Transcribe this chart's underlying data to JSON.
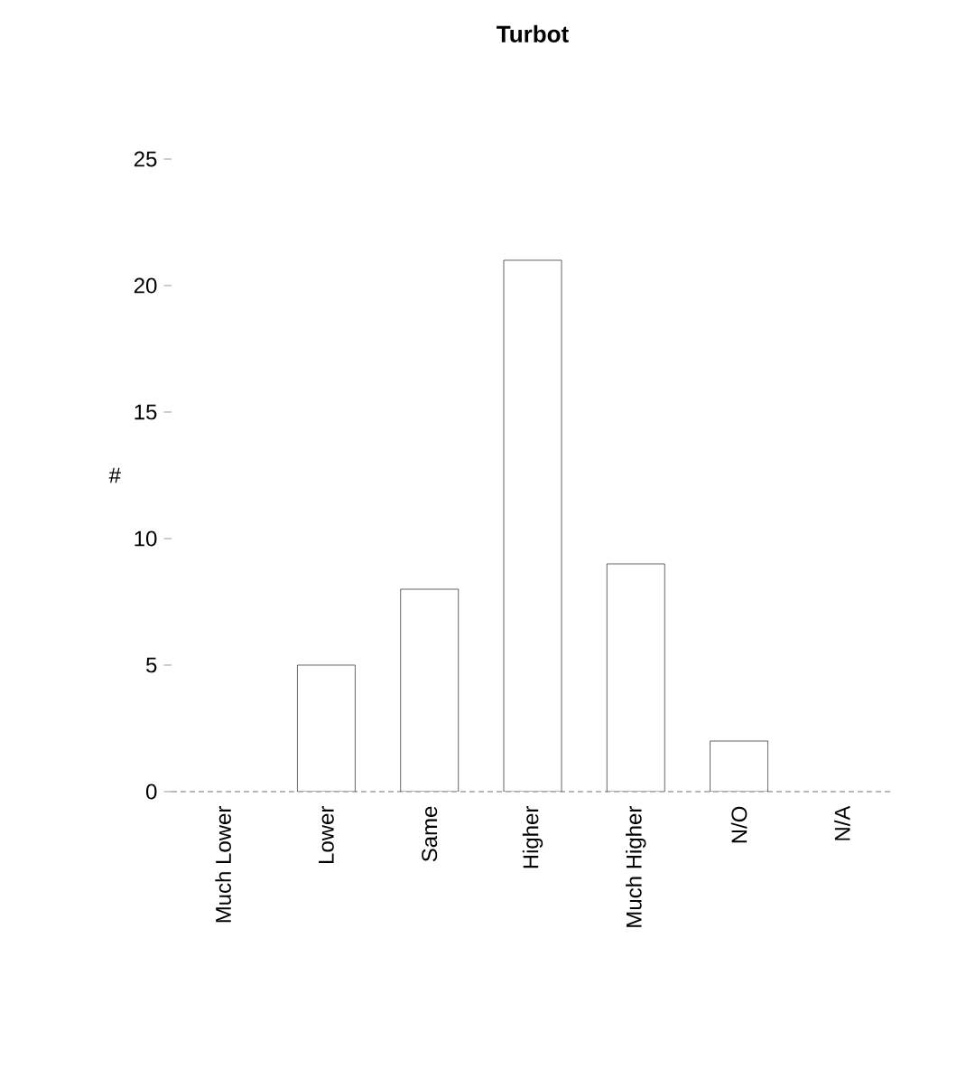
{
  "chart_data": {
    "type": "bar",
    "title": "Turbot",
    "ylabel": "#",
    "categories": [
      "Much Lower",
      "Lower",
      "Same",
      "Higher",
      "Much Higher",
      "N/O",
      "N/A"
    ],
    "values": [
      0,
      5,
      8,
      21,
      9,
      2,
      0
    ],
    "color": "#ffffff",
    "ylim": [
      0,
      25
    ],
    "yticks": [
      0,
      5,
      10,
      15,
      20,
      25
    ],
    "grid": false
  }
}
